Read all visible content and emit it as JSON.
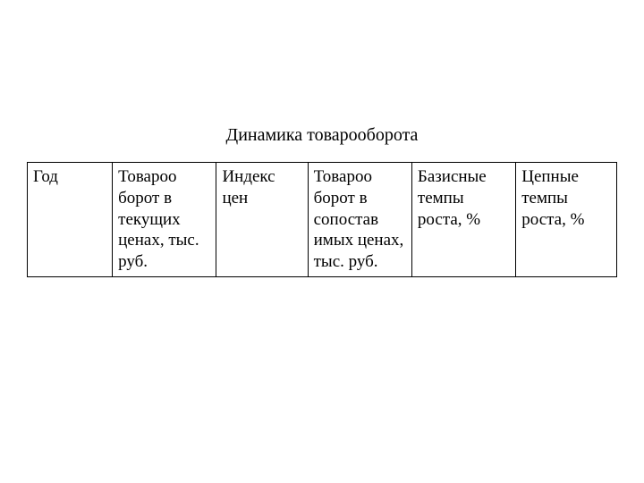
{
  "title": "Динамика товарооборота",
  "table": {
    "type": "table",
    "columns": [
      {
        "header": "Год",
        "width_pct": 13.5
      },
      {
        "header": "Товароо борот в текущих ценах, тыс. руб.",
        "width_pct": 16.5
      },
      {
        "header": "Индекс цен",
        "width_pct": 14.5
      },
      {
        "header": "Товароо борот в сопостав имых ценах, тыс. руб.",
        "width_pct": 16.5
      },
      {
        "header": "Базисные темпы роста, %",
        "width_pct": 16.5
      },
      {
        "header": "Цепные темпы роста, %",
        "width_pct": 16.0
      }
    ],
    "border_color": "#000000",
    "background_color": "#ffffff",
    "text_color": "#000000",
    "font_family": "Times New Roman",
    "header_fontsize": 19
  }
}
